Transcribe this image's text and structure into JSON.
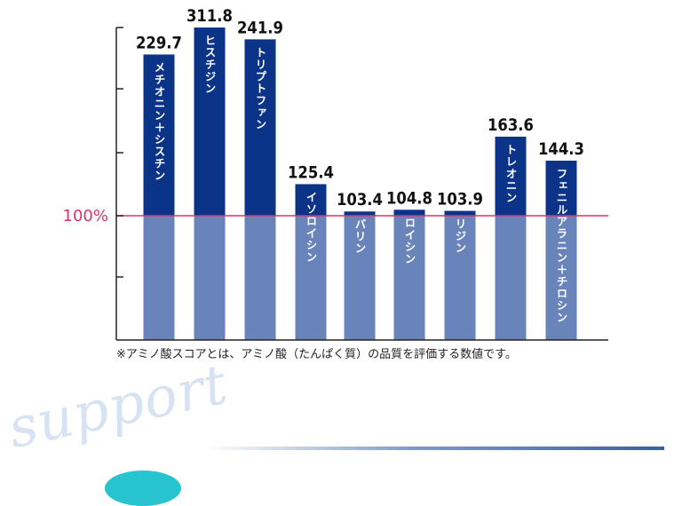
{
  "chart_data": {
    "type": "bar",
    "categories": [
      "メチオニン＋シスチン",
      "ヒスチジン",
      "トリプトファン",
      "イソロイシン",
      "バリン",
      "ロイシン",
      "リジン",
      "トレオニン",
      "フェニルアラニン＋チロシン"
    ],
    "values": [
      229.7,
      311.8,
      241.9,
      125.4,
      103.4,
      104.8,
      103.9,
      163.6,
      144.3
    ],
    "value_labels": [
      "229.7",
      "311.8",
      "241.9",
      "125.4",
      "103.4",
      "104.8",
      "103.9",
      "163.6",
      "144.3"
    ],
    "reference_value": 100,
    "reference_label": "100%",
    "ylim": [
      0,
      200
    ],
    "colors": {
      "bar_upper": "#0b3489",
      "bar_lower": "#6983bb",
      "reference_line": "#d8336b",
      "axis": "#222222"
    }
  },
  "footnote": "※アミノ酸スコアとは、アミノ酸（たんぱく質）の品質を評価する数値です。",
  "decoration": {
    "word": "support"
  }
}
